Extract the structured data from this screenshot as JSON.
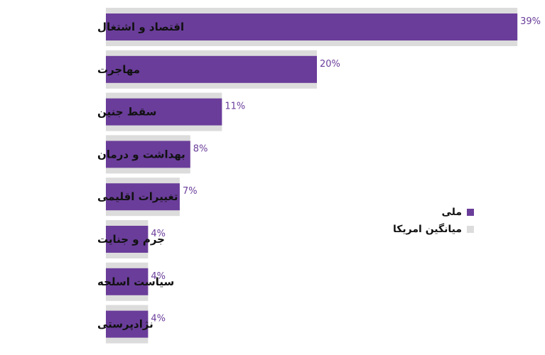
{
  "chart_data": {
    "type": "bar",
    "orientation": "horizontal",
    "categories": [
      "اقتصاد و اشتغال",
      "مهاجرت",
      "سقط جنین",
      "بهداشت و درمان",
      "تغییرات اقلیمی",
      "جرم و جنایت",
      "سیاست اسلحه",
      "نژادپرستی"
    ],
    "series": [
      {
        "name": "ملی",
        "values": [
          39,
          20,
          11,
          8,
          7,
          4,
          4,
          4
        ],
        "color": "#6a3d9a"
      },
      {
        "name": "میانگین امریکا",
        "values": [
          39,
          20,
          11,
          8,
          7,
          4,
          4,
          4
        ],
        "color": "#dcdcdc"
      }
    ],
    "value_labels": [
      "39%",
      "20%",
      "11%",
      "8%",
      "7%",
      "4%",
      "4%",
      "4%"
    ],
    "title": "",
    "xlabel": "",
    "ylabel": "",
    "xlim": [
      0,
      40
    ],
    "grid": false,
    "legend_position": "right"
  }
}
